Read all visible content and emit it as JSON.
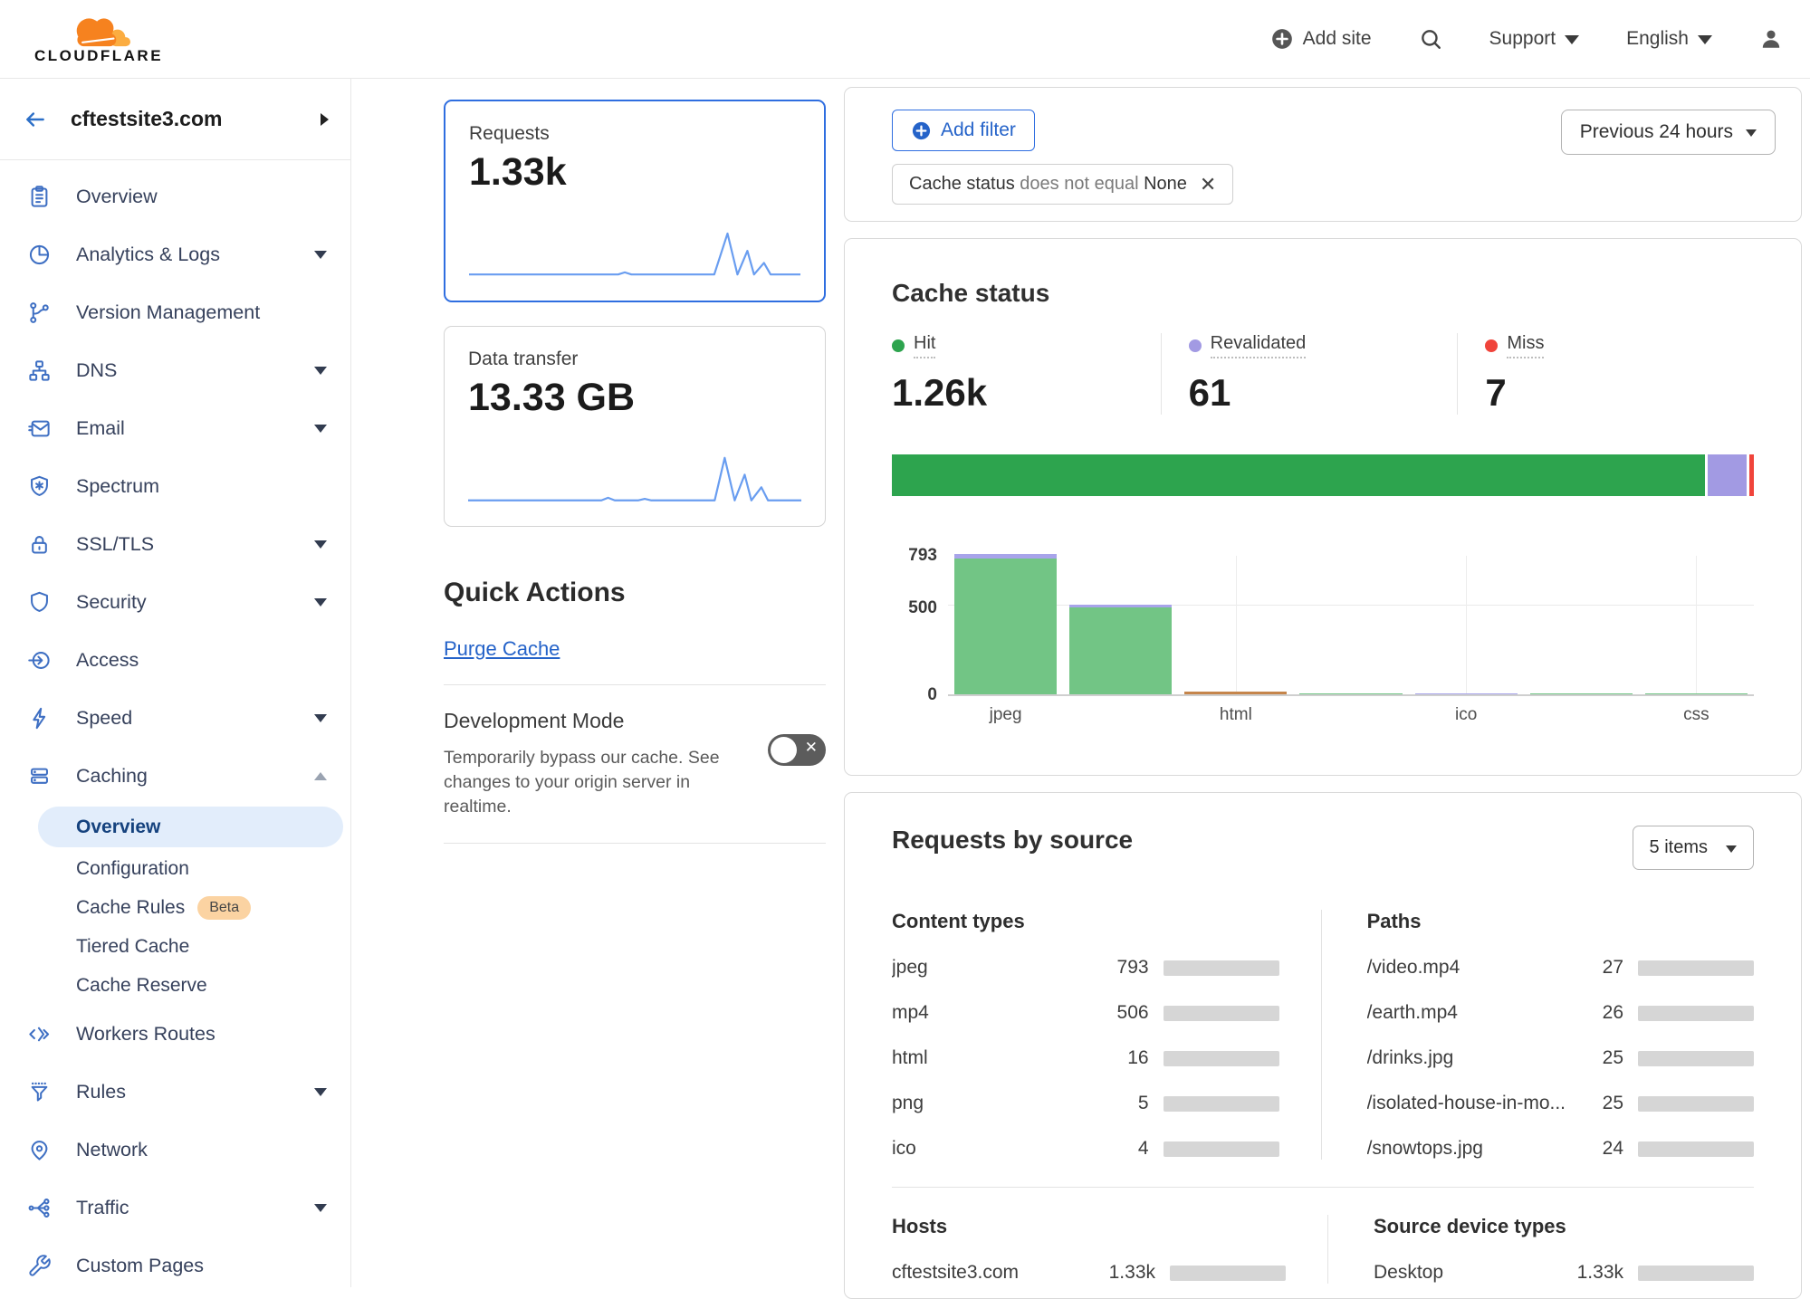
{
  "header": {
    "brand": "CLOUDFLARE",
    "add_site": "Add site",
    "support": "Support",
    "language": "English"
  },
  "sidebar": {
    "site": "cftestsite3.com",
    "items": [
      {
        "label": "Overview"
      },
      {
        "label": "Analytics & Logs"
      },
      {
        "label": "Version Management"
      },
      {
        "label": "DNS"
      },
      {
        "label": "Email"
      },
      {
        "label": "Spectrum"
      },
      {
        "label": "SSL/TLS"
      },
      {
        "label": "Security"
      },
      {
        "label": "Access"
      },
      {
        "label": "Speed"
      },
      {
        "label": "Caching"
      }
    ],
    "caching_children": [
      {
        "label": "Overview",
        "selected": true
      },
      {
        "label": "Configuration"
      },
      {
        "label": "Cache Rules",
        "badge": "Beta"
      },
      {
        "label": "Tiered Cache"
      },
      {
        "label": "Cache Reserve"
      }
    ],
    "items_after": [
      {
        "label": "Workers Routes"
      },
      {
        "label": "Rules"
      },
      {
        "label": "Network"
      },
      {
        "label": "Traffic"
      },
      {
        "label": "Custom Pages"
      }
    ]
  },
  "metrics": {
    "requests": {
      "label": "Requests",
      "value": "1.33k"
    },
    "data_transfer": {
      "label": "Data transfer",
      "value": "13.33 GB"
    }
  },
  "quick_actions": {
    "title": "Quick Actions",
    "purge_cache": "Purge Cache",
    "dev_mode": {
      "title": "Development Mode",
      "description": "Temporarily bypass our cache. See changes to your origin server in realtime.",
      "state": "off"
    }
  },
  "filters": {
    "add_filter": "Add filter",
    "chip": {
      "field": "Cache status",
      "operator": "does not equal",
      "value": "None"
    },
    "time_range": "Previous 24 hours"
  },
  "cache_status": {
    "title": "Cache status",
    "legend": [
      {
        "label": "Hit",
        "value": "1.26k",
        "color": "#2da44e"
      },
      {
        "label": "Revalidated",
        "value": "61",
        "color": "#a29ae3"
      },
      {
        "label": "Miss",
        "value": "7",
        "color": "#f0443b"
      }
    ]
  },
  "requests_by_source": {
    "title": "Requests by source",
    "items_selector": "5 items",
    "content_types": {
      "title": "Content types",
      "rows": [
        {
          "name": "jpeg",
          "value": "793",
          "num": 793
        },
        {
          "name": "mp4",
          "value": "506",
          "num": 506
        },
        {
          "name": "html",
          "value": "16",
          "num": 16
        },
        {
          "name": "png",
          "value": "5",
          "num": 5
        },
        {
          "name": "ico",
          "value": "4",
          "num": 4
        }
      ]
    },
    "paths": {
      "title": "Paths",
      "rows": [
        {
          "name": "/video.mp4",
          "value": "27",
          "num": 27
        },
        {
          "name": "/earth.mp4",
          "value": "26",
          "num": 26
        },
        {
          "name": "/drinks.jpg",
          "value": "25",
          "num": 25
        },
        {
          "name": "/isolated-house-in-mo...",
          "value": "25",
          "num": 25
        },
        {
          "name": "/snowtops.jpg",
          "value": "24",
          "num": 24
        }
      ]
    },
    "hosts": {
      "title": "Hosts",
      "rows": [
        {
          "name": "cftestsite3.com",
          "value": "1.33k",
          "num": 1330
        }
      ]
    },
    "device_types": {
      "title": "Source device types",
      "rows": [
        {
          "name": "Desktop",
          "value": "1.33k",
          "num": 1330
        }
      ]
    }
  },
  "totals": {
    "requests": 1330
  },
  "colors": {
    "accent_blue": "#2f6ee0",
    "link_blue": "#2563c9",
    "progress_blue": "#2270f3",
    "hit_green": "#2da44e",
    "chart_green": "#72c585",
    "revalidated_purple": "#a29ae3",
    "chart_purple": "#a8a4ea",
    "miss_red": "#f0443b",
    "html_orange": "#c5854b",
    "sparkline_blue": "#699df0"
  },
  "chart_data": [
    {
      "id": "cache_status_stacked",
      "type": "bar",
      "title": "Cache status totals",
      "series": [
        {
          "name": "Hit",
          "value": 1260,
          "color": "#2da44e"
        },
        {
          "name": "Revalidated",
          "value": 61,
          "color": "#a29ae3"
        },
        {
          "name": "Miss",
          "value": 7,
          "color": "#f0443b"
        }
      ]
    },
    {
      "id": "cache_by_content_type",
      "type": "bar",
      "title": "Cache status by content type",
      "y_max": 793,
      "y_ticks": [
        "793",
        "500",
        "0"
      ],
      "grid": true,
      "slots": [
        {
          "label": "jpeg",
          "show_label": true,
          "segments": [
            {
              "color": "#72c585",
              "value": 770
            },
            {
              "color": "#a8a4ea",
              "value": 23
            }
          ]
        },
        {
          "label": "",
          "show_label": false,
          "segments": [
            {
              "color": "#72c585",
              "value": 490
            },
            {
              "color": "#a8a4ea",
              "value": 16
            }
          ]
        },
        {
          "label": "html",
          "show_label": true,
          "segments": [
            {
              "color": "#c5854b",
              "value": 16
            }
          ]
        },
        {
          "label": "",
          "show_label": false,
          "segments": [
            {
              "color": "#72c585",
              "value": 5
            }
          ]
        },
        {
          "label": "ico",
          "show_label": true,
          "segments": [
            {
              "color": "#a8a4ea",
              "value": 4
            }
          ]
        },
        {
          "label": "",
          "show_label": false,
          "segments": [
            {
              "color": "#72c585",
              "value": 2
            }
          ]
        },
        {
          "label": "css",
          "show_label": true,
          "segments": [
            {
              "color": "#72c585",
              "value": 1
            }
          ]
        }
      ]
    },
    {
      "id": "requests_sparkline",
      "type": "line",
      "color": "#699df0",
      "points": [
        [
          0,
          90
        ],
        [
          45,
          90
        ],
        [
          47,
          86
        ],
        [
          49,
          90
        ],
        [
          74,
          90
        ],
        [
          78,
          12
        ],
        [
          81,
          90
        ],
        [
          84,
          45
        ],
        [
          86,
          90
        ],
        [
          89,
          68
        ],
        [
          91,
          90
        ],
        [
          100,
          90
        ]
      ]
    },
    {
      "id": "data_transfer_sparkline",
      "type": "line",
      "color": "#699df0",
      "points": [
        [
          0,
          91
        ],
        [
          40,
          91
        ],
        [
          42,
          86
        ],
        [
          44,
          91
        ],
        [
          51,
          91
        ],
        [
          53,
          88
        ],
        [
          55,
          91
        ],
        [
          74,
          91
        ],
        [
          77,
          10
        ],
        [
          80,
          91
        ],
        [
          83,
          42
        ],
        [
          85,
          91
        ],
        [
          88,
          66
        ],
        [
          90,
          91
        ],
        [
          100,
          91
        ]
      ]
    }
  ]
}
